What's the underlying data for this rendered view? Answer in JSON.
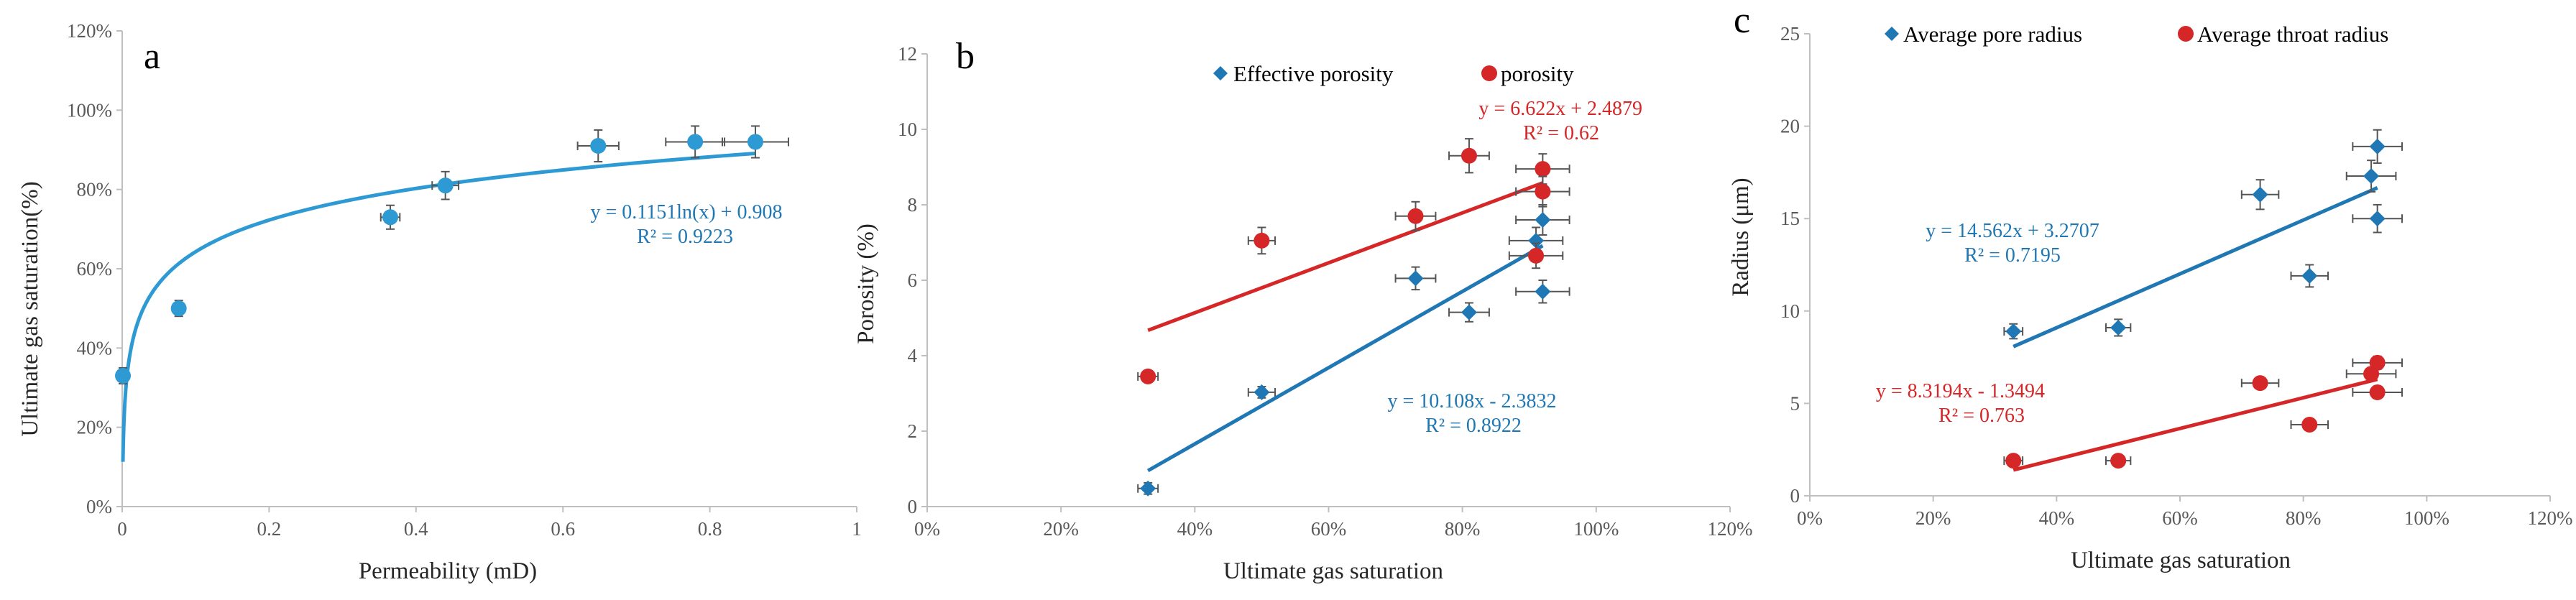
{
  "colors": {
    "blue": "#1f77b4",
    "light_blue": "#2e9ad4",
    "red": "#d62728",
    "axis": "#bfbfbf",
    "err": "#555555"
  },
  "chart_data": [
    {
      "panel": "a",
      "type": "scatter",
      "xlabel": "Permeability (mD)",
      "ylabel": "Ultimate gas saturation(%)",
      "xlim": [
        0,
        1
      ],
      "ylim": [
        0,
        1.2
      ],
      "xticks": [
        "0",
        "0.2",
        "0.4",
        "0.6",
        "0.8",
        "1"
      ],
      "yticks": [
        "0%",
        "20%",
        "40%",
        "60%",
        "80%",
        "100%",
        "120%"
      ],
      "series": [
        {
          "name": "Ultimate gas saturation",
          "marker": "circle",
          "color": "#2e9ad4",
          "points": [
            {
              "x": 0.001,
              "y": 0.33,
              "xerr": 0.0,
              "yerr": 0.02
            },
            {
              "x": 0.077,
              "y": 0.5,
              "xerr": 0.0,
              "yerr": 0.02
            },
            {
              "x": 0.365,
              "y": 0.73,
              "xerr": 0.013,
              "yerr": 0.03
            },
            {
              "x": 0.44,
              "y": 0.81,
              "xerr": 0.018,
              "yerr": 0.035
            },
            {
              "x": 0.648,
              "y": 0.91,
              "xerr": 0.028,
              "yerr": 0.04
            },
            {
              "x": 0.78,
              "y": 0.92,
              "xerr": 0.04,
              "yerr": 0.04
            },
            {
              "x": 0.862,
              "y": 0.92,
              "xerr": 0.045,
              "yerr": 0.04
            }
          ]
        }
      ],
      "trendlines": [
        {
          "form": "log",
          "a": 0.1151,
          "b": 0.908,
          "x_from": 0.001,
          "x_to": 0.862,
          "color": "#2e9ad4",
          "equation": "y = 0.1151ln(x) + 0.908",
          "r2": "R² = 0.9223"
        }
      ]
    },
    {
      "panel": "b",
      "type": "scatter",
      "xlabel": "Ultimate gas saturation",
      "ylabel": "Porosity (%)",
      "xlim": [
        0,
        1.2
      ],
      "ylim": [
        0,
        12
      ],
      "xticks": [
        "0%",
        "20%",
        "40%",
        "60%",
        "80%",
        "100%",
        "120%"
      ],
      "yticks": [
        "0",
        "2",
        "4",
        "6",
        "8",
        "10",
        "12"
      ],
      "series": [
        {
          "name": "Effective porosity",
          "marker": "diamond",
          "color": "#1f77b4",
          "points": [
            {
              "x": 0.33,
              "y": 0.48,
              "xerr": 0.015,
              "yerr": 0.15
            },
            {
              "x": 0.5,
              "y": 3.03,
              "xerr": 0.02,
              "yerr": 0.15
            },
            {
              "x": 0.73,
              "y": 6.05,
              "xerr": 0.03,
              "yerr": 0.3
            },
            {
              "x": 0.81,
              "y": 5.15,
              "xerr": 0.03,
              "yerr": 0.25
            },
            {
              "x": 0.91,
              "y": 7.05,
              "xerr": 0.04,
              "yerr": 0.35
            },
            {
              "x": 0.92,
              "y": 7.6,
              "xerr": 0.04,
              "yerr": 0.4
            },
            {
              "x": 0.92,
              "y": 5.7,
              "xerr": 0.04,
              "yerr": 0.3
            }
          ]
        },
        {
          "name": "porosity",
          "marker": "circle",
          "color": "#d62728",
          "points": [
            {
              "x": 0.33,
              "y": 3.45,
              "xerr": 0.015,
              "yerr": 0.15
            },
            {
              "x": 0.5,
              "y": 7.05,
              "xerr": 0.02,
              "yerr": 0.35
            },
            {
              "x": 0.73,
              "y": 7.7,
              "xerr": 0.03,
              "yerr": 0.38
            },
            {
              "x": 0.81,
              "y": 9.3,
              "xerr": 0.03,
              "yerr": 0.45
            },
            {
              "x": 0.91,
              "y": 6.65,
              "xerr": 0.04,
              "yerr": 0.33
            },
            {
              "x": 0.92,
              "y": 8.95,
              "xerr": 0.04,
              "yerr": 0.4
            },
            {
              "x": 0.92,
              "y": 8.35,
              "xerr": 0.04,
              "yerr": 0.4
            }
          ]
        }
      ],
      "trendlines": [
        {
          "form": "linear",
          "m": 10.108,
          "c": -2.3832,
          "x_from": 0.33,
          "x_to": 0.92,
          "color": "#1f77b4",
          "equation": "y = 10.108x - 2.3832",
          "r2": "R² = 0.8922"
        },
        {
          "form": "linear",
          "m": 6.622,
          "c": 2.4879,
          "x_from": 0.33,
          "x_to": 0.92,
          "color": "#d62728",
          "equation": "y = 6.622x + 2.4879",
          "r2": "R² = 0.62"
        }
      ]
    },
    {
      "panel": "c",
      "type": "scatter",
      "xlabel": "Ultimate gas saturation",
      "ylabel": "Radius (μm)",
      "xlim": [
        0,
        1.2
      ],
      "ylim": [
        0,
        25
      ],
      "xticks": [
        "0%",
        "20%",
        "40%",
        "60%",
        "80%",
        "100%",
        "120%"
      ],
      "yticks": [
        "0",
        "5",
        "10",
        "15",
        "20",
        "25"
      ],
      "series": [
        {
          "name": "Average pore radius",
          "marker": "diamond",
          "color": "#1f77b4",
          "points": [
            {
              "x": 0.33,
              "y": 8.9,
              "xerr": 0.015,
              "yerr": 0.4
            },
            {
              "x": 0.5,
              "y": 9.1,
              "xerr": 0.02,
              "yerr": 0.45
            },
            {
              "x": 0.73,
              "y": 16.3,
              "xerr": 0.03,
              "yerr": 0.8
            },
            {
              "x": 0.81,
              "y": 11.9,
              "xerr": 0.03,
              "yerr": 0.6
            },
            {
              "x": 0.91,
              "y": 17.3,
              "xerr": 0.04,
              "yerr": 0.85
            },
            {
              "x": 0.92,
              "y": 18.9,
              "xerr": 0.04,
              "yerr": 0.9
            },
            {
              "x": 0.92,
              "y": 15.0,
              "xerr": 0.04,
              "yerr": 0.75
            }
          ]
        },
        {
          "name": "Average throat radius",
          "marker": "circle",
          "color": "#d62728",
          "points": [
            {
              "x": 0.33,
              "y": 1.9,
              "xerr": 0.015,
              "yerr": 0.1
            },
            {
              "x": 0.5,
              "y": 1.9,
              "xerr": 0.02,
              "yerr": 0.1
            },
            {
              "x": 0.73,
              "y": 6.1,
              "xerr": 0.03,
              "yerr": 0.3
            },
            {
              "x": 0.81,
              "y": 3.85,
              "xerr": 0.03,
              "yerr": 0.2
            },
            {
              "x": 0.91,
              "y": 6.6,
              "xerr": 0.04,
              "yerr": 0.33
            },
            {
              "x": 0.92,
              "y": 7.2,
              "xerr": 0.04,
              "yerr": 0.35
            },
            {
              "x": 0.92,
              "y": 5.6,
              "xerr": 0.04,
              "yerr": 0.28
            }
          ]
        }
      ],
      "trendlines": [
        {
          "form": "linear",
          "m": 14.562,
          "c": 3.2707,
          "x_from": 0.33,
          "x_to": 0.92,
          "color": "#1f77b4",
          "equation": "y = 14.562x + 3.2707",
          "r2": "R² = 0.7195"
        },
        {
          "form": "linear",
          "m": 8.3194,
          "c": -1.3494,
          "x_from": 0.33,
          "x_to": 0.92,
          "color": "#d62728",
          "equation": "y = 8.3194x - 1.3494",
          "r2": "R² = 0.763"
        }
      ]
    }
  ]
}
